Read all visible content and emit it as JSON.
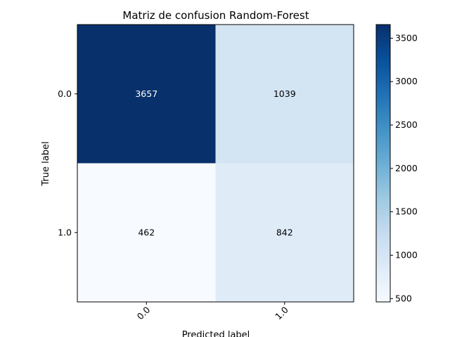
{
  "chart_data": {
    "type": "heatmap",
    "title": "Matriz de confusion Random-Forest",
    "xlabel": "Predicted label",
    "ylabel": "True label",
    "x_categories": [
      "0.0",
      "1.0"
    ],
    "y_categories": [
      "0.0",
      "1.0"
    ],
    "values": [
      [
        3657,
        1039
      ],
      [
        462,
        842
      ]
    ],
    "colormap": "Blues",
    "color_range": [
      462,
      3657
    ],
    "colorbar_ticks": [
      "500",
      "1000",
      "1500",
      "2000",
      "2500",
      "3000",
      "3500"
    ],
    "colorbar_tick_values": [
      500,
      1000,
      1500,
      2000,
      2500,
      3000,
      3500
    ],
    "colors": {
      "low": "#f7fbff",
      "high": "#08306b",
      "text_dark": "#000000",
      "text_light": "#ffffff"
    }
  }
}
